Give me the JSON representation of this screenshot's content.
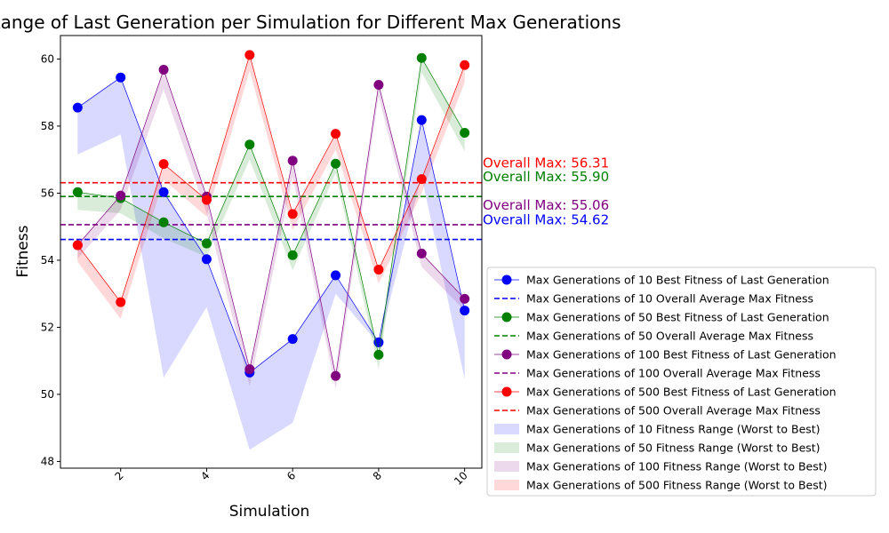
{
  "chart_data": {
    "type": "line",
    "title": "Fitness Range of Last Generation per Simulation for Different Max Generations",
    "xlabel": "Simulation",
    "ylabel": "Fitness",
    "xlim": [
      0.6,
      10.4
    ],
    "ylim": [
      47.8,
      60.7
    ],
    "xticks": [
      2,
      4,
      6,
      8,
      10
    ],
    "yticks": [
      48,
      50,
      52,
      54,
      56,
      58,
      60
    ],
    "x": [
      1,
      2,
      3,
      4,
      5,
      6,
      7,
      8,
      9,
      10
    ],
    "grid": false,
    "legend_position": "lower-right outside",
    "series": [
      {
        "color": "#0000ff",
        "best_label": "Max Generations of 10 Best Fitness of Last Generation",
        "avg_label": "Max Generations of 10 Overall Average Max Fitness",
        "range_label": "Max Generations of 10 Fitness Range (Worst to Best)",
        "annotation": "Overall Max: 54.62",
        "overall_avg_max": 54.62,
        "best": [
          58.55,
          59.45,
          56.03,
          54.03,
          50.65,
          51.65,
          53.55,
          51.55,
          58.18,
          52.5
        ],
        "worst": [
          57.15,
          57.75,
          50.5,
          52.6,
          48.35,
          49.15,
          53.0,
          51.5,
          56.5,
          50.45
        ]
      },
      {
        "color": "#008000",
        "best_label": "Max Generations of 50 Best Fitness of Last Generation",
        "avg_label": "Max Generations of 50 Overall Average Max Fitness",
        "range_label": "Max Generations of 50 Fitness Range (Worst to Best)",
        "annotation": "Overall Max: 55.90",
        "overall_avg_max": 55.9,
        "best": [
          56.03,
          55.85,
          55.13,
          54.5,
          57.45,
          54.15,
          56.88,
          51.18,
          60.03,
          57.8
        ],
        "worst": [
          55.5,
          55.4,
          54.65,
          54.1,
          57.0,
          53.7,
          56.6,
          50.75,
          59.6,
          57.25
        ]
      },
      {
        "color": "#800080",
        "best_label": "Max Generations of 100 Best Fitness of Last Generation",
        "avg_label": "Max Generations of 100 Overall Average Max Fitness",
        "range_label": "Max Generations of 100 Fitness Range (Worst to Best)",
        "annotation": "Overall Max: 55.06",
        "overall_avg_max": 55.06,
        "best": [
          54.45,
          55.93,
          59.68,
          55.9,
          50.75,
          56.97,
          50.55,
          59.23,
          54.2,
          52.85
        ],
        "worst": [
          54.05,
          55.5,
          59.1,
          55.4,
          50.25,
          56.5,
          50.15,
          58.9,
          53.8,
          52.5
        ]
      },
      {
        "color": "#ff0000",
        "best_label": "Max Generations of 500 Best Fitness of Last Generation",
        "avg_label": "Max Generations of 500 Overall Average Max Fitness",
        "range_label": "Max Generations of 500 Fitness Range (Worst to Best)",
        "annotation": "Overall Max: 56.31",
        "overall_avg_max": 56.31,
        "best": [
          54.45,
          52.75,
          56.87,
          55.8,
          60.12,
          55.38,
          57.77,
          53.72,
          56.42,
          59.82
        ],
        "worst": [
          53.95,
          52.25,
          56.4,
          55.3,
          59.65,
          54.9,
          57.3,
          53.3,
          56.0,
          59.3
        ]
      }
    ]
  }
}
